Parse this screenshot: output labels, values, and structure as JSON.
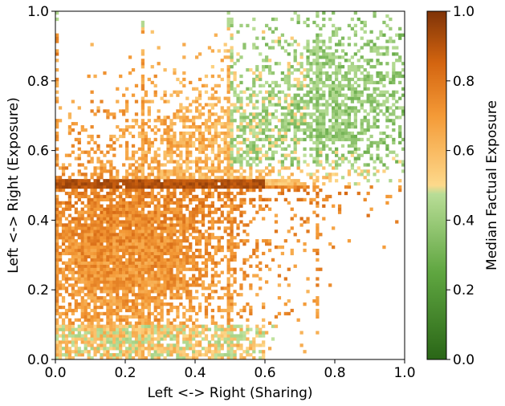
{
  "chart_data": {
    "type": "heatmap",
    "xlabel": "Left <-> Right (Sharing)",
    "ylabel": "Left <-> Right (Exposure)",
    "colorbar_label": "Median Factual Exposure",
    "xlim": [
      0.0,
      1.0
    ],
    "ylim": [
      0.0,
      1.0
    ],
    "clim": [
      0.0,
      1.0
    ],
    "x_ticks": [
      "0.0",
      "0.2",
      "0.4",
      "0.6",
      "0.8",
      "1.0"
    ],
    "y_ticks": [
      "0.0",
      "0.2",
      "0.4",
      "0.6",
      "0.8",
      "1.0"
    ],
    "colorbar_ticks": [
      "0.0",
      "0.2",
      "0.4",
      "0.6",
      "0.8",
      "1.0"
    ],
    "grid": false,
    "colormap": [
      {
        "v": 0.0,
        "color": "#2a6617"
      },
      {
        "v": 0.25,
        "color": "#5fa640"
      },
      {
        "v": 0.499,
        "color": "#c2e3a0"
      },
      {
        "v": 0.5,
        "color": "#fdd98b"
      },
      {
        "v": 0.7,
        "color": "#f49a37"
      },
      {
        "v": 0.85,
        "color": "#d46510"
      },
      {
        "v": 1.0,
        "color": "#7f3307"
      }
    ],
    "regions": [
      {
        "region": "lower-left cluster (sharing 0.0-0.5, exposure 0.0-0.5)",
        "median_factual_exposure": 0.7
      },
      {
        "region": "band at exposure 0.5, sharing 0.0-0.5",
        "median_factual_exposure": 0.88
      },
      {
        "region": "mid-upper (sharing 0.2-0.6, exposure 0.5-0.75)",
        "median_factual_exposure": 0.65
      },
      {
        "region": "right-upper (sharing 0.5-1.0, exposure 0.55-1.0)",
        "median_factual_exposure": 0.42
      },
      {
        "region": "bottom strip (exposure 0.0-0.1)",
        "median_factual_exposure": 0.45
      }
    ]
  }
}
